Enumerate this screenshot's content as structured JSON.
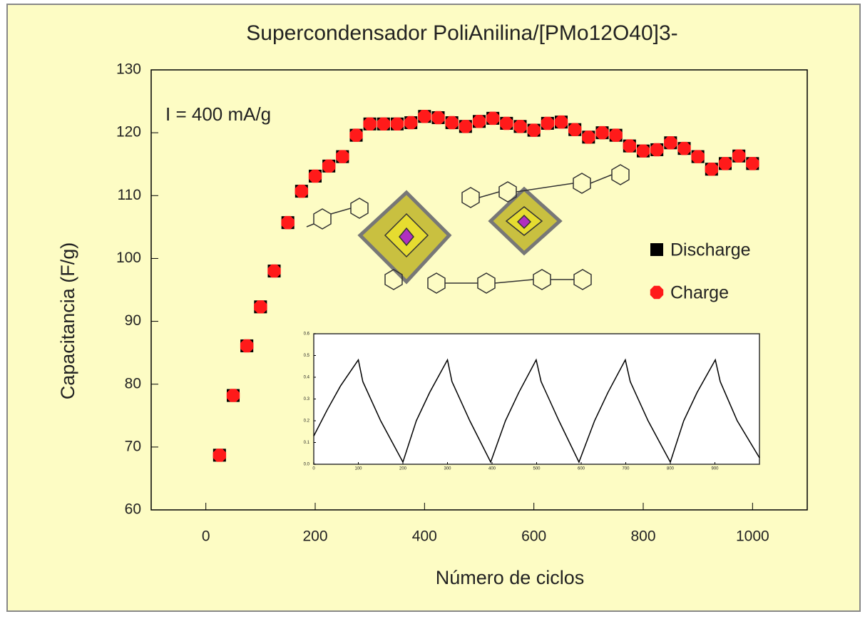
{
  "chart_data": [
    {
      "type": "scatter",
      "title": "Supercondensador PoliAnilina/[PMo12O40]3-",
      "x_label": "Número de ciclos",
      "y_label": "Capacitancia       (F/g)",
      "annotation": "I = 400 mA/g",
      "x": [
        25,
        50,
        75,
        100,
        125,
        150,
        175,
        200,
        225,
        250,
        275,
        300,
        325,
        350,
        375,
        400,
        425,
        450,
        475,
        500,
        525,
        550,
        575,
        600,
        625,
        650,
        675,
        700,
        725,
        750,
        775,
        800,
        825,
        850,
        875,
        900,
        925,
        950,
        975,
        1000
      ],
      "series": [
        {
          "name": "Discharge",
          "color": "#000000",
          "marker": "square",
          "values": [
            68.7,
            78.2,
            86.1,
            92.3,
            98.0,
            105.7,
            110.7,
            113.1,
            114.7,
            116.2,
            119.6,
            121.4,
            121.4,
            121.4,
            121.6,
            122.6,
            122.4,
            121.6,
            121.0,
            121.8,
            122.3,
            121.5,
            121.0,
            120.4,
            121.5,
            121.7,
            120.5,
            119.3,
            120.0,
            119.6,
            117.9,
            117.1,
            117.3,
            118.4,
            117.5,
            116.2,
            114.2,
            115.1,
            116.3,
            115.1
          ]
        },
        {
          "name": "Charge",
          "color": "#ff1a1a",
          "marker": "octagon",
          "values": [
            68.7,
            78.2,
            86.1,
            92.3,
            98.0,
            105.7,
            110.7,
            113.1,
            114.7,
            116.2,
            119.6,
            121.4,
            121.4,
            121.4,
            121.6,
            122.6,
            122.4,
            121.6,
            121.0,
            121.8,
            122.3,
            121.5,
            121.0,
            120.4,
            121.5,
            121.7,
            120.5,
            119.3,
            120.0,
            119.6,
            117.9,
            117.1,
            117.3,
            118.4,
            117.5,
            116.2,
            114.2,
            115.1,
            116.3,
            115.1
          ]
        }
      ],
      "xlim": [
        -100,
        1100
      ],
      "xticks": [
        0,
        200,
        400,
        600,
        800,
        1000
      ],
      "ylim": [
        60,
        130
      ],
      "yticks": [
        60,
        70,
        80,
        90,
        100,
        110,
        120,
        130
      ]
    },
    {
      "type": "line",
      "x": [
        0,
        30,
        60,
        100,
        110,
        150,
        200,
        230,
        260,
        300,
        310,
        350,
        397,
        430,
        460,
        499,
        510,
        550,
        595,
        630,
        660,
        699,
        710,
        750,
        800,
        830,
        860,
        901,
        912,
        950,
        1000
      ],
      "series": [
        {
          "color": "#000000",
          "values": [
            0.13,
            0.25,
            0.36,
            0.48,
            0.38,
            0.2,
            0.01,
            0.2,
            0.33,
            0.48,
            0.38,
            0.2,
            0.01,
            0.2,
            0.33,
            0.48,
            0.38,
            0.2,
            0.01,
            0.2,
            0.33,
            0.48,
            0.38,
            0.2,
            0.01,
            0.2,
            0.33,
            0.48,
            0.38,
            0.2,
            0.03
          ]
        }
      ],
      "xlim": [
        0,
        1000
      ],
      "xticks": [
        0,
        100,
        200,
        300,
        400,
        500,
        600,
        700,
        800,
        900
      ],
      "ylim": [
        0,
        0.6
      ],
      "yticks": [
        {
          "value": 0,
          "label": "0.0"
        },
        0.1,
        0.2,
        0.3,
        0.4,
        0.5,
        0.6
      ]
    }
  ]
}
